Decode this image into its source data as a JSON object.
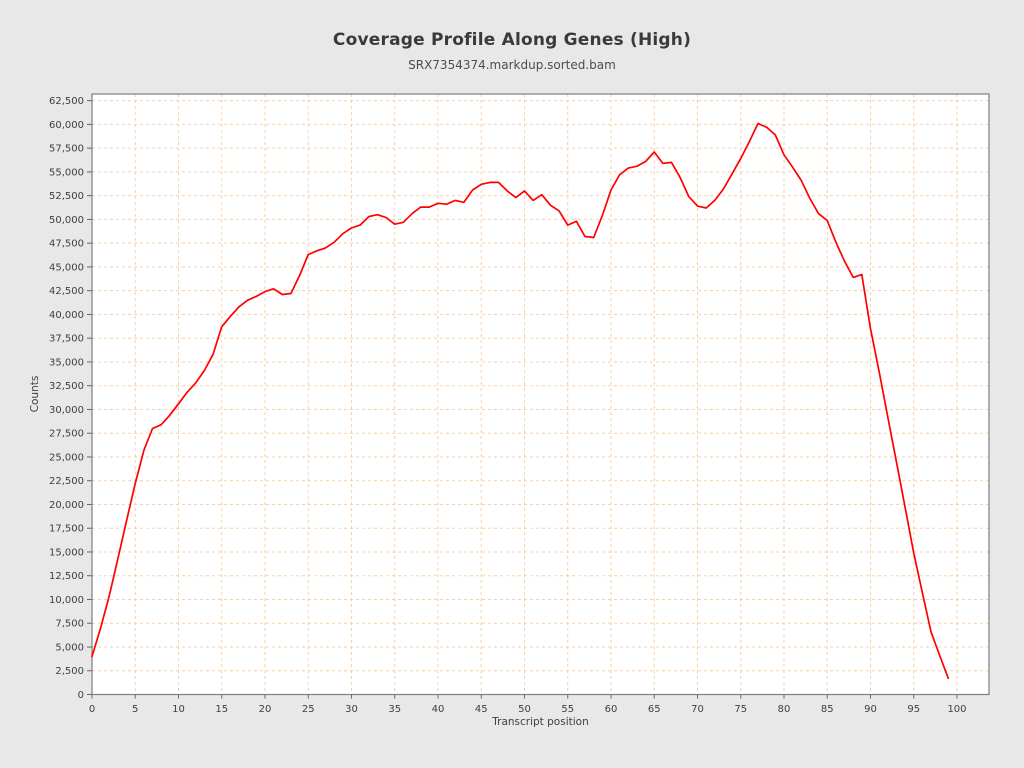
{
  "window": {
    "background_color": "#e8e8e8",
    "plot_background_color": "#ffffff",
    "plot_border_color": "#7f7f7f",
    "tick_color": "#666666"
  },
  "chart_data": {
    "type": "line",
    "title": "Coverage Profile Along Genes (High)",
    "subtitle": "SRX7354374.markdup.sorted.bam",
    "xlabel": "Transcript position",
    "ylabel": "Counts",
    "legend_position": "none",
    "grid": true,
    "grid_color": "#f9cfa4",
    "line_color": "#ff0000",
    "xlim": [
      0,
      103.7
    ],
    "ylim": [
      0,
      63200
    ],
    "x_ticks": [
      0,
      5,
      10,
      15,
      20,
      25,
      30,
      35,
      40,
      45,
      50,
      55,
      60,
      65,
      70,
      75,
      80,
      85,
      90,
      95,
      100
    ],
    "y_ticks": [
      0,
      2500,
      5000,
      7500,
      10000,
      12500,
      15000,
      17500,
      20000,
      22500,
      25000,
      27500,
      30000,
      32500,
      35000,
      37500,
      40000,
      42500,
      45000,
      47500,
      50000,
      52500,
      55000,
      57500,
      60000,
      62500
    ],
    "x": [
      0,
      1,
      2,
      3,
      4,
      5,
      6,
      7,
      8,
      9,
      10,
      11,
      12,
      13,
      14,
      15,
      16,
      17,
      18,
      19,
      20,
      21,
      22,
      23,
      24,
      25,
      26,
      27,
      28,
      29,
      30,
      31,
      32,
      33,
      34,
      35,
      36,
      37,
      38,
      39,
      40,
      41,
      42,
      43,
      44,
      45,
      46,
      47,
      48,
      49,
      50,
      51,
      52,
      53,
      54,
      55,
      56,
      57,
      58,
      59,
      60,
      61,
      62,
      63,
      64,
      65,
      66,
      67,
      68,
      69,
      70,
      71,
      72,
      73,
      74,
      75,
      76,
      77,
      78,
      79,
      80,
      81,
      82,
      83,
      84,
      85,
      86,
      87,
      88,
      89,
      90,
      91,
      92,
      93,
      94,
      95,
      96,
      97,
      98,
      99
    ],
    "series": [
      {
        "name": "SRX7354374.markdup.sorted.bam",
        "values": [
          4000,
          7000,
          10400,
          14300,
          18300,
          22200,
          25700,
          28000,
          28400,
          29400,
          30600,
          31800,
          32800,
          34100,
          35800,
          38700,
          39800,
          40800,
          41500,
          41900,
          42400,
          42700,
          42100,
          42200,
          44100,
          46300,
          46700,
          47000,
          47600,
          48500,
          49100,
          49400,
          50300,
          50500,
          50200,
          49500,
          49700,
          50600,
          51300,
          51300,
          51700,
          51600,
          52000,
          51800,
          53100,
          53700,
          53900,
          53900,
          53000,
          52300,
          53000,
          52000,
          52600,
          51500,
          50900,
          49400,
          49800,
          48200,
          48100,
          50400,
          53100,
          54700,
          55400,
          55600,
          56100,
          57100,
          55900,
          56000,
          54400,
          52400,
          51400,
          51200,
          52000,
          53200,
          54800,
          56400,
          58200,
          60100,
          59700,
          58900,
          56800,
          55500,
          54100,
          52200,
          50600,
          49900,
          47600,
          45600,
          43900,
          44200,
          38500,
          34000,
          29200,
          24500,
          19700,
          14900,
          10700,
          6600,
          4100,
          1700
        ]
      }
    ]
  }
}
